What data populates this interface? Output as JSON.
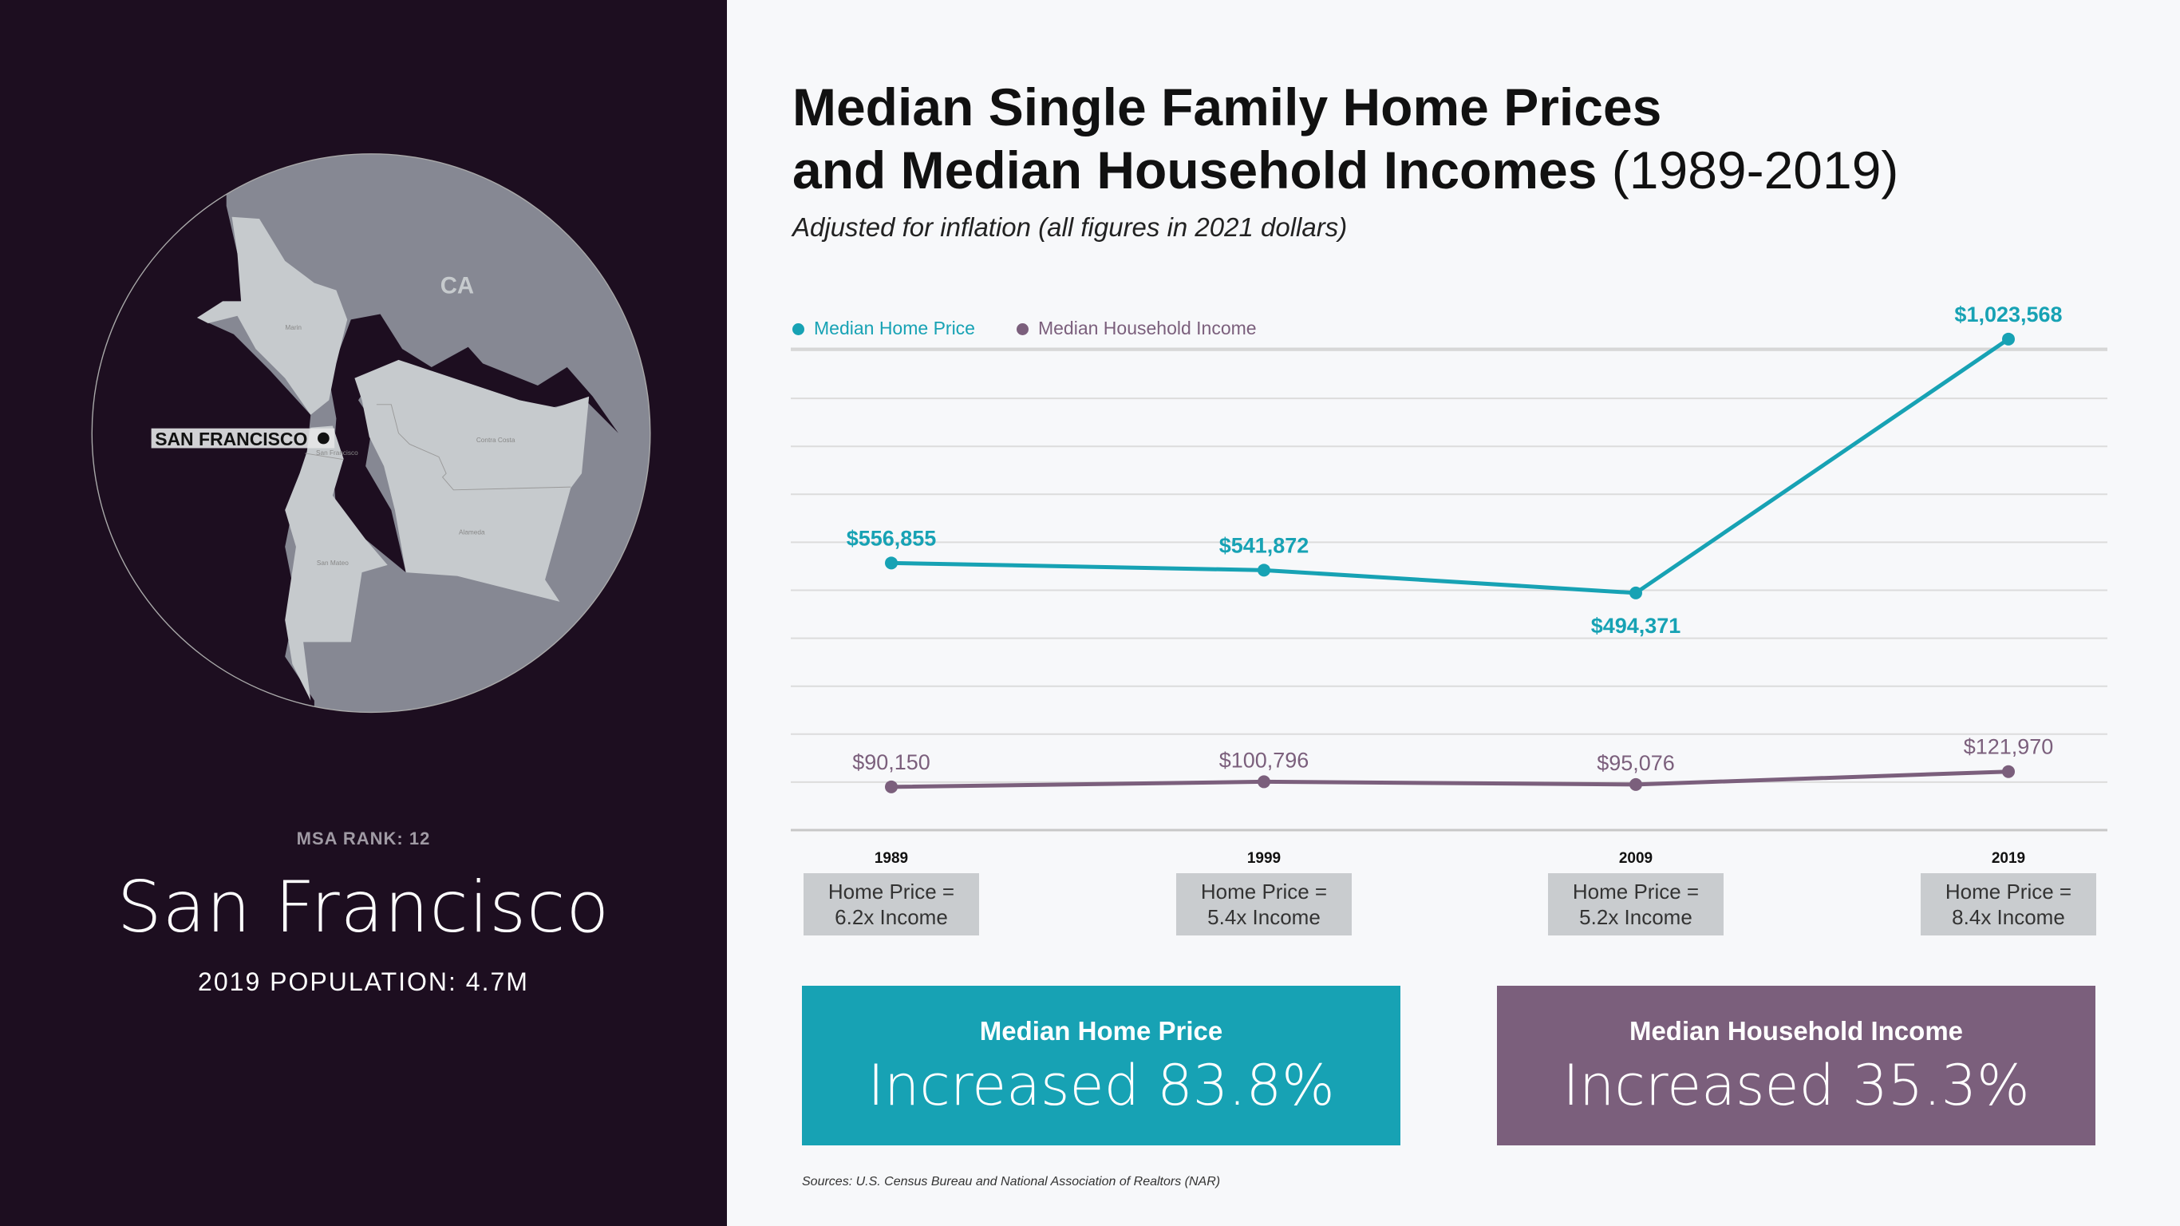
{
  "left_panel": {
    "state_label": "CA",
    "city_marker": "SAN FRANCISCO",
    "county_labels": [
      "Marin",
      "San Francisco",
      "Contra Costa",
      "Alameda",
      "San Mateo"
    ],
    "msa_rank": "MSA RANK: 12",
    "city": "San Francisco",
    "population": "2019 POPULATION: 4.7M"
  },
  "header": {
    "title_line1": "Median Single Family Home Prices",
    "title_line2": "and Median Household Incomes",
    "title_years": " (1989-2019)",
    "subtitle": "Adjusted for inflation (all figures in 2021 dollars)"
  },
  "chart_data": {
    "type": "line",
    "categories": [
      "1989",
      "1999",
      "2009",
      "2019"
    ],
    "series": [
      {
        "name": "Median Home Price",
        "color": "#17a2b4",
        "values": [
          556855,
          541872,
          494371,
          1023568
        ],
        "labels": [
          "$556,855",
          "$541,872",
          "$494,371",
          "$1,023,568"
        ]
      },
      {
        "name": "Median Household Income",
        "color": "#7b5f7c",
        "values": [
          90150,
          100796,
          95076,
          121970
        ],
        "labels": [
          "$90,150",
          "$100,796",
          "$95,076",
          "$121,970"
        ]
      }
    ],
    "ylim": [
      0,
      1000000
    ],
    "grid": true,
    "legend": "top-left"
  },
  "ratios": [
    {
      "line1": "Home Price =",
      "line2": "6.2x Income"
    },
    {
      "line1": "Home Price =",
      "line2": "5.4x Income"
    },
    {
      "line1": "Home Price =",
      "line2": "5.2x Income"
    },
    {
      "line1": "Home Price =",
      "line2": "8.4x Income"
    }
  ],
  "summary": [
    {
      "heading": "Median Home Price",
      "value": "Increased 83.8%",
      "color": "#17a2b4"
    },
    {
      "heading": "Median Household Income",
      "value": "Increased 35.3%",
      "color": "#7b5f7c"
    }
  ],
  "sources": "Sources: U.S. Census Bureau and National Association of Realtors (NAR)"
}
